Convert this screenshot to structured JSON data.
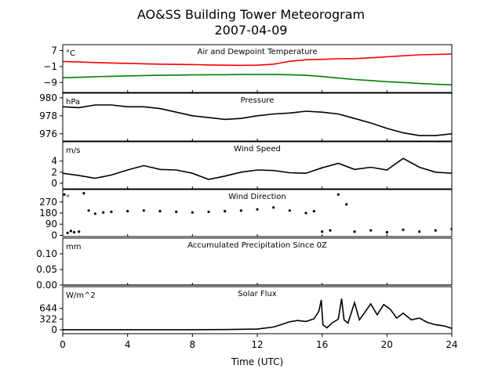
{
  "header": {
    "title": "AO&SS Building Tower Meteorogram",
    "date": "2007-04-09"
  },
  "x_axis": {
    "label": "Time (UTC)",
    "ticks": [
      0,
      4,
      8,
      12,
      16,
      20,
      24
    ],
    "tick_labels": [
      "0",
      "4",
      "8",
      "12",
      "16",
      "20",
      "24"
    ],
    "range": [
      0,
      24
    ]
  },
  "chart_data": [
    {
      "type": "line",
      "title": "Air and Dewpoint Temperature",
      "ylabel": "°C",
      "ylim": [
        -14,
        10
      ],
      "yticks": [
        7,
        -1,
        -9
      ],
      "ytick_labels": [
        "7",
        "−1",
        "−9"
      ],
      "series": [
        {
          "color": "#ff0000",
          "x": [
            0,
            1,
            2,
            3,
            4,
            5,
            6,
            7,
            8,
            9,
            10,
            11,
            12,
            13,
            14,
            15,
            16,
            17,
            18,
            19,
            20,
            21,
            22,
            23,
            24
          ],
          "y": [
            1.5,
            1.3,
            1.0,
            0.8,
            0.6,
            0.4,
            0.2,
            0.1,
            0.0,
            -0.2,
            -0.3,
            -0.4,
            -0.3,
            0.2,
            1.6,
            2.4,
            2.6,
            2.9,
            3.0,
            3.4,
            3.9,
            4.4,
            4.9,
            5.1,
            5.3
          ]
        },
        {
          "color": "#008000",
          "x": [
            0,
            1,
            2,
            3,
            4,
            5,
            6,
            7,
            8,
            9,
            10,
            11,
            12,
            13,
            14,
            15,
            16,
            17,
            18,
            19,
            20,
            21,
            22,
            23,
            24
          ],
          "y": [
            -6.6,
            -6.4,
            -6.1,
            -5.9,
            -5.7,
            -5.5,
            -5.4,
            -5.3,
            -5.2,
            -5.1,
            -5.1,
            -5.0,
            -5.0,
            -5.0,
            -5.1,
            -5.4,
            -6.0,
            -6.8,
            -7.5,
            -8.0,
            -8.6,
            -9.0,
            -9.5,
            -9.9,
            -10.2
          ]
        }
      ]
    },
    {
      "type": "line",
      "title": "Pressure",
      "ylabel": "hPa",
      "ylim": [
        975.2,
        980.5
      ],
      "yticks": [
        980,
        978,
        976
      ],
      "ytick_labels": [
        "980",
        "978",
        "976"
      ],
      "series": [
        {
          "color": "#000000",
          "x": [
            0,
            1,
            2,
            3,
            4,
            5,
            6,
            7,
            8,
            9,
            10,
            11,
            12,
            13,
            14,
            15,
            16,
            17,
            18,
            19,
            20,
            21,
            22,
            23,
            24
          ],
          "y": [
            979.0,
            978.9,
            979.2,
            979.2,
            979.0,
            979.0,
            978.8,
            978.4,
            978.0,
            977.8,
            977.6,
            977.7,
            978.0,
            978.2,
            978.3,
            978.5,
            978.4,
            978.2,
            977.7,
            977.2,
            976.6,
            976.1,
            975.8,
            975.8,
            976.0
          ]
        }
      ]
    },
    {
      "type": "line",
      "title": "Wind Speed",
      "ylabel": "m/s",
      "ylim": [
        -1,
        7.5
      ],
      "yticks": [
        4,
        2,
        0
      ],
      "ytick_labels": [
        "4",
        "2",
        "0"
      ],
      "series": [
        {
          "color": "#000000",
          "x": [
            0,
            1,
            2,
            3,
            4,
            5,
            6,
            7,
            8,
            9,
            10,
            11,
            12,
            13,
            14,
            15,
            16,
            17,
            18,
            19,
            20,
            21,
            22,
            23,
            24
          ],
          "y": [
            1.8,
            1.4,
            0.9,
            1.5,
            2.4,
            3.2,
            2.5,
            2.4,
            1.8,
            0.7,
            1.3,
            2.0,
            2.4,
            2.3,
            1.9,
            1.8,
            2.8,
            3.6,
            2.5,
            2.9,
            2.4,
            4.5,
            2.9,
            2.0,
            1.8
          ]
        }
      ]
    },
    {
      "type": "scatter",
      "title": "Wind Direction",
      "ylabel": "°",
      "ylim": [
        -10,
        370
      ],
      "yticks": [
        270,
        180,
        90,
        0
      ],
      "ytick_labels": [
        "270",
        "180",
        "90",
        "0"
      ],
      "series": [
        {
          "color": "#000000",
          "x": [
            0.1,
            0.3,
            0.5,
            0.7,
            1.0,
            1.3,
            1.6,
            2.0,
            2.5,
            3.0,
            4.0,
            5.0,
            6.0,
            7.0,
            8.0,
            9.0,
            10.0,
            11.0,
            12.0,
            13.0,
            14.0,
            15.0,
            15.5,
            16.0,
            16.5,
            17.0,
            17.5,
            18.0,
            19.0,
            20.0,
            21.0,
            22.0,
            23.0,
            24.0
          ],
          "y": [
            330,
            20,
            35,
            25,
            30,
            340,
            200,
            175,
            185,
            190,
            195,
            200,
            195,
            190,
            185,
            190,
            195,
            200,
            210,
            225,
            200,
            180,
            195,
            30,
            40,
            330,
            250,
            30,
            40,
            25,
            45,
            30,
            40,
            50
          ]
        }
      ]
    },
    {
      "type": "line",
      "title": "Accumulated Precipitation Since 0Z",
      "ylabel": "mm",
      "ylim": [
        0,
        0.15
      ],
      "yticks": [
        0.1,
        0.05,
        0.0
      ],
      "ytick_labels": [
        "0.10",
        "0.05",
        "0.00"
      ],
      "series": [
        {
          "color": "#000000",
          "x": [
            0,
            24
          ],
          "y": [
            0,
            0
          ]
        }
      ]
    },
    {
      "type": "line",
      "title": "Solar Flux",
      "ylabel": "W/m^2",
      "ylim": [
        -120,
        1300
      ],
      "yticks": [
        644,
        322,
        0
      ],
      "ytick_labels": [
        "644",
        "322",
        "0"
      ],
      "series": [
        {
          "color": "#000000",
          "x": [
            0,
            6,
            8,
            10,
            12,
            13,
            13.5,
            14,
            14.5,
            15,
            15.5,
            15.8,
            15.95,
            16.05,
            16.3,
            16.6,
            17,
            17.2,
            17.35,
            17.6,
            18,
            18.3,
            18.6,
            19,
            19.4,
            19.8,
            20.2,
            20.6,
            21,
            21.5,
            22,
            22.5,
            23,
            23.5,
            24
          ],
          "y": [
            0,
            0,
            0,
            5,
            20,
            80,
            160,
            240,
            280,
            250,
            330,
            560,
            900,
            150,
            60,
            200,
            320,
            940,
            300,
            200,
            820,
            300,
            500,
            780,
            450,
            760,
            620,
            350,
            500,
            300,
            350,
            220,
            150,
            120,
            40
          ]
        }
      ]
    }
  ]
}
